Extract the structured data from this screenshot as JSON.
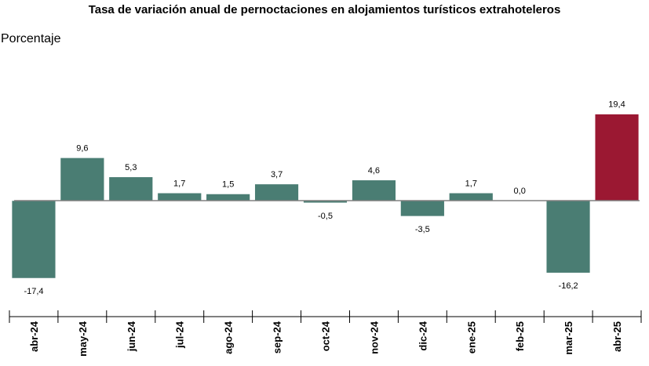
{
  "chart_data": {
    "type": "bar",
    "title": "Tasa de variación anual de pernoctaciones en alojamientos turísticos extrahoteleros",
    "ylabel": "Porcentaje",
    "xlabel": "",
    "categories": [
      "abr-24",
      "may-24",
      "jun-24",
      "jul-24",
      "ago-24",
      "sep-24",
      "oct-24",
      "nov-24",
      "dic-24",
      "ene-25",
      "feb-25",
      "mar-25",
      "abr-25"
    ],
    "values": [
      -17.4,
      9.6,
      5.3,
      1.7,
      1.5,
      3.7,
      -0.5,
      4.6,
      -3.5,
      1.7,
      0.0,
      -16.2,
      19.4
    ],
    "value_labels": [
      "-17,4",
      "9,6",
      "5,3",
      "1,7",
      "1,5",
      "3,7",
      "-0,5",
      "4,6",
      "-3,5",
      "1,7",
      "0,0",
      "-16,2",
      "19,4"
    ],
    "ylim": [
      -17.4,
      19.4
    ],
    "grid": false,
    "legend": "none",
    "colors": {
      "default_bar": "#4a7d73",
      "highlight_bar": "#9b1832",
      "baseline": "#808080",
      "axis": "#000000"
    },
    "highlight_index": 12
  }
}
